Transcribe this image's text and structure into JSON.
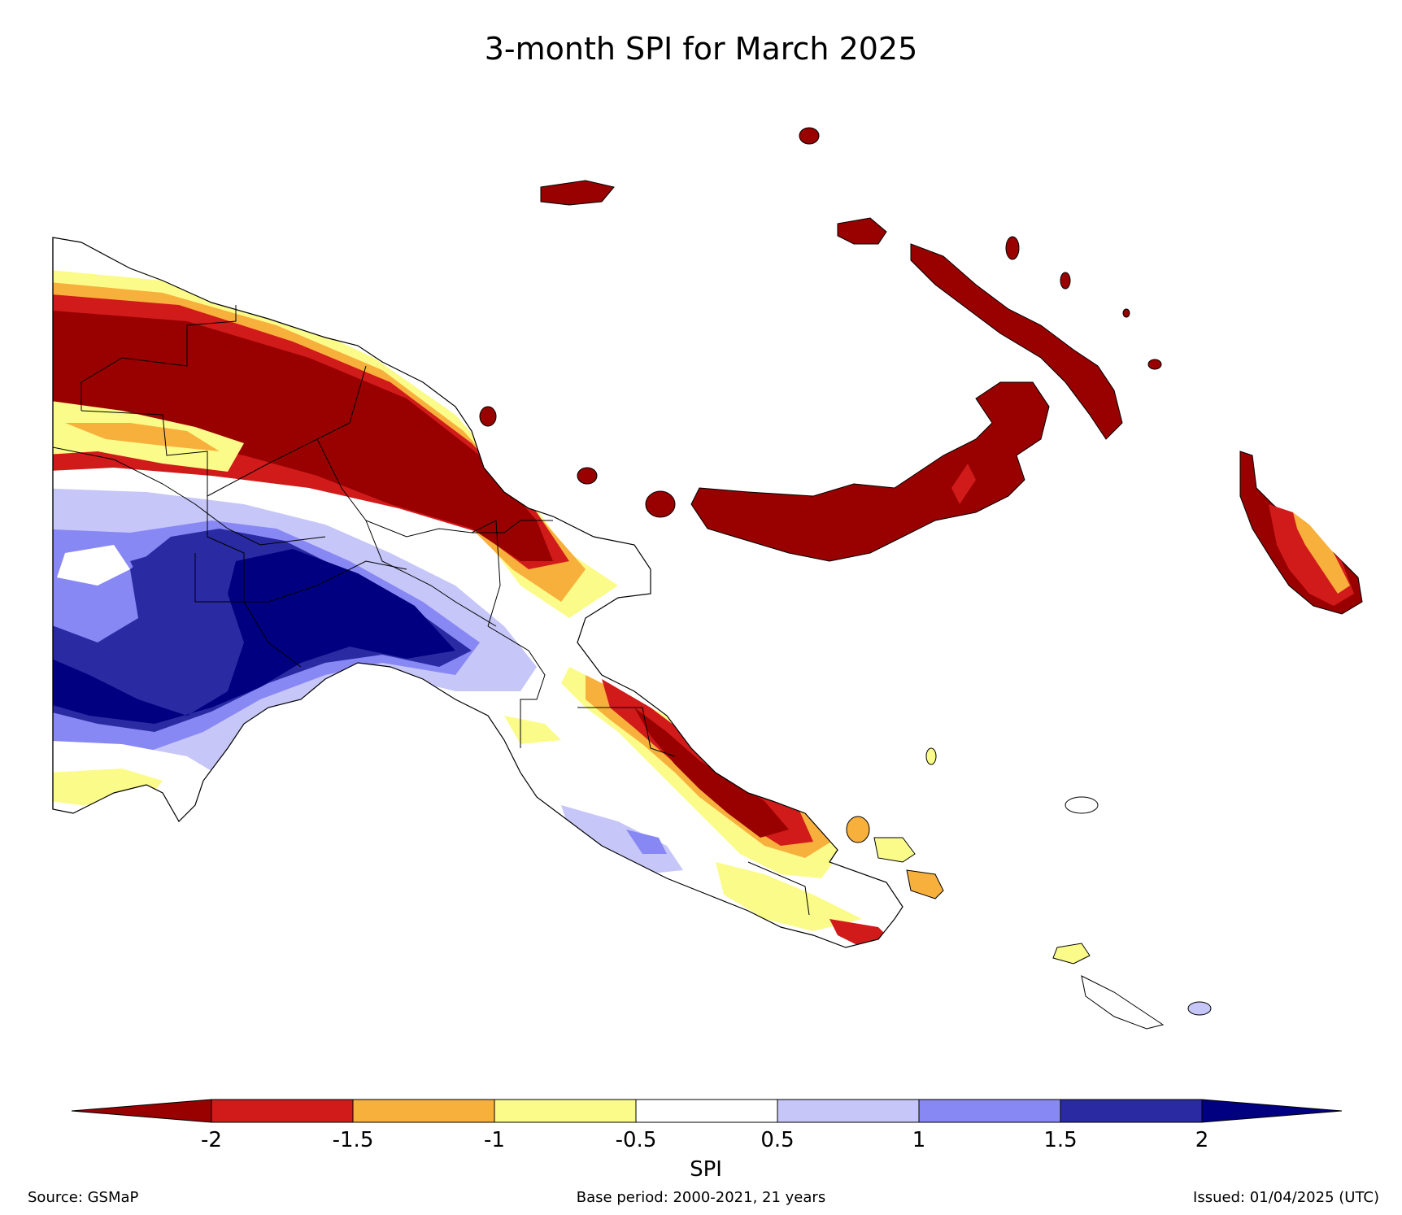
{
  "title": "3-month SPI for March 2025",
  "colorbar": {
    "label": "SPI",
    "ticks": [
      "-2",
      "-1.5",
      "-1",
      "-0.5",
      "0.5",
      "1",
      "1.5",
      "2"
    ],
    "bins": [
      {
        "range": "< -2",
        "color": "#990000"
      },
      {
        "range": "-2 to -1.5",
        "color": "#d11b1b"
      },
      {
        "range": "-1.5 to -1",
        "color": "#f8b03c"
      },
      {
        "range": "-1 to -0.5",
        "color": "#fbfb8a"
      },
      {
        "range": "-0.5 to 0.5",
        "color": "#ffffff"
      },
      {
        "range": "0.5 to 1",
        "color": "#c6c6f8"
      },
      {
        "range": "1 to 1.5",
        "color": "#8888f4"
      },
      {
        "range": "1.5 to 2",
        "color": "#2a2aa3"
      },
      {
        "range": "> 2",
        "color": "#000080"
      }
    ]
  },
  "footer": {
    "source": "Source: GSMaP",
    "base_period": "Base period: 2000-2021, 21 years",
    "issued": "Issued: 01/04/2025 (UTC)"
  }
}
